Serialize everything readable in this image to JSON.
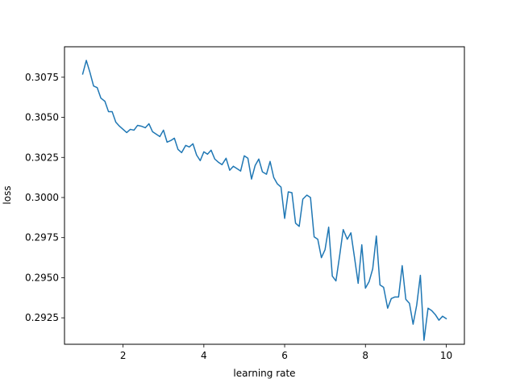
{
  "chart_data": {
    "type": "line",
    "title": "",
    "xlabel": "learning rate",
    "ylabel": "loss",
    "xlim": [
      0.55,
      10.45
    ],
    "ylim": [
      0.29085,
      0.3094
    ],
    "xticks": [
      2,
      4,
      6,
      8,
      10
    ],
    "yticks": [
      0.2925,
      0.295,
      0.2975,
      0.3,
      0.3025,
      0.305,
      0.3075
    ],
    "xtick_labels": [
      "2",
      "4",
      "6",
      "8",
      "10"
    ],
    "ytick_labels": [
      "0.2925",
      "0.2950",
      "0.2975",
      "0.3000",
      "0.3025",
      "0.3050",
      "0.3075"
    ],
    "grid": false,
    "line_color": "#1f77b4",
    "series": [
      {
        "x": [
          1.0,
          1.09,
          1.18,
          1.27,
          1.36,
          1.45,
          1.55,
          1.64,
          1.73,
          1.82,
          1.91,
          2.0,
          2.09,
          2.18,
          2.27,
          2.36,
          2.45,
          2.55,
          2.64,
          2.73,
          2.82,
          2.91,
          3.0,
          3.09,
          3.18,
          3.27,
          3.36,
          3.45,
          3.55,
          3.64,
          3.73,
          3.82,
          3.91,
          4.0,
          4.09,
          4.18,
          4.27,
          4.36,
          4.45,
          4.55,
          4.64,
          4.73,
          4.82,
          4.91,
          5.0,
          5.09,
          5.18,
          5.27,
          5.36,
          5.45,
          5.55,
          5.64,
          5.73,
          5.82,
          5.91,
          6.0,
          6.09,
          6.18,
          6.27,
          6.36,
          6.45,
          6.55,
          6.64,
          6.73,
          6.82,
          6.91,
          7.0,
          7.09,
          7.18,
          7.27,
          7.36,
          7.45,
          7.55,
          7.64,
          7.73,
          7.82,
          7.91,
          8.0,
          8.09,
          8.18,
          8.27,
          8.36,
          8.45,
          8.55,
          8.64,
          8.73,
          8.82,
          8.91,
          9.0,
          9.09,
          9.18,
          9.27,
          9.36,
          9.45,
          9.55,
          9.64,
          9.73,
          9.82,
          9.91,
          10.0
        ],
        "y": [
          0.3077,
          0.30855,
          0.3078,
          0.30695,
          0.30685,
          0.3062,
          0.306,
          0.30535,
          0.30535,
          0.3047,
          0.30445,
          0.30425,
          0.30405,
          0.30425,
          0.3042,
          0.3045,
          0.30445,
          0.30435,
          0.3046,
          0.3041,
          0.30395,
          0.3038,
          0.3042,
          0.30345,
          0.30355,
          0.3037,
          0.303,
          0.3028,
          0.30325,
          0.30315,
          0.30335,
          0.30265,
          0.3023,
          0.30285,
          0.3027,
          0.30295,
          0.3024,
          0.3022,
          0.30205,
          0.30245,
          0.3017,
          0.30195,
          0.3018,
          0.30165,
          0.3026,
          0.30245,
          0.30115,
          0.302,
          0.3024,
          0.3016,
          0.30145,
          0.30225,
          0.30125,
          0.30085,
          0.30065,
          0.2987,
          0.30035,
          0.3003,
          0.2984,
          0.2982,
          0.2999,
          0.30015,
          0.3,
          0.29755,
          0.2974,
          0.29625,
          0.29675,
          0.29815,
          0.2951,
          0.2948,
          0.29635,
          0.298,
          0.2974,
          0.2978,
          0.29625,
          0.29465,
          0.29705,
          0.29435,
          0.29475,
          0.29555,
          0.2976,
          0.29455,
          0.2944,
          0.2931,
          0.2937,
          0.2938,
          0.2938,
          0.29575,
          0.29365,
          0.2934,
          0.2921,
          0.2933,
          0.29515,
          0.2911,
          0.2931,
          0.29295,
          0.2927,
          0.29235,
          0.2926,
          0.29245
        ]
      }
    ]
  }
}
